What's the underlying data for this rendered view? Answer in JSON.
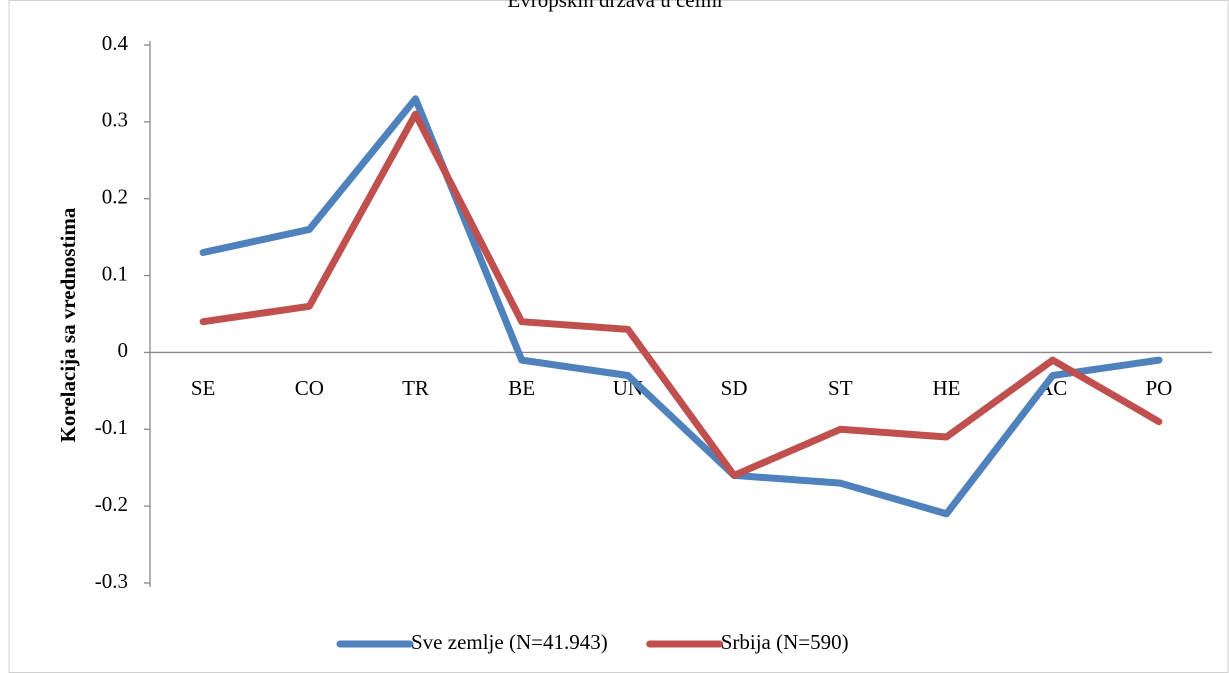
{
  "chart_data": {
    "type": "line",
    "title": "Evropskih država u celini",
    "ylabel": "Korelacija sa vrednostima",
    "categories": [
      "SE",
      "CO",
      "TR",
      "BE",
      "UN",
      "SD",
      "ST",
      "HE",
      "AC",
      "PO"
    ],
    "series": [
      {
        "name": "Sve zemlje (N=41.943)",
        "color": "#4f81bd",
        "values": [
          0.13,
          0.16,
          0.33,
          -0.01,
          -0.03,
          -0.16,
          -0.17,
          -0.21,
          -0.03,
          -0.01
        ]
      },
      {
        "name": "Srbija (N=590)",
        "color": "#c0504d",
        "values": [
          0.04,
          0.06,
          0.31,
          0.04,
          0.03,
          -0.16,
          -0.1,
          -0.11,
          -0.01,
          -0.09
        ]
      }
    ],
    "ylim": [
      -0.3,
      0.4
    ],
    "yticks": [
      -0.3,
      -0.2,
      -0.1,
      0,
      0.1,
      0.2,
      0.3,
      0.4
    ],
    "grid": false,
    "legend": "bottom"
  }
}
